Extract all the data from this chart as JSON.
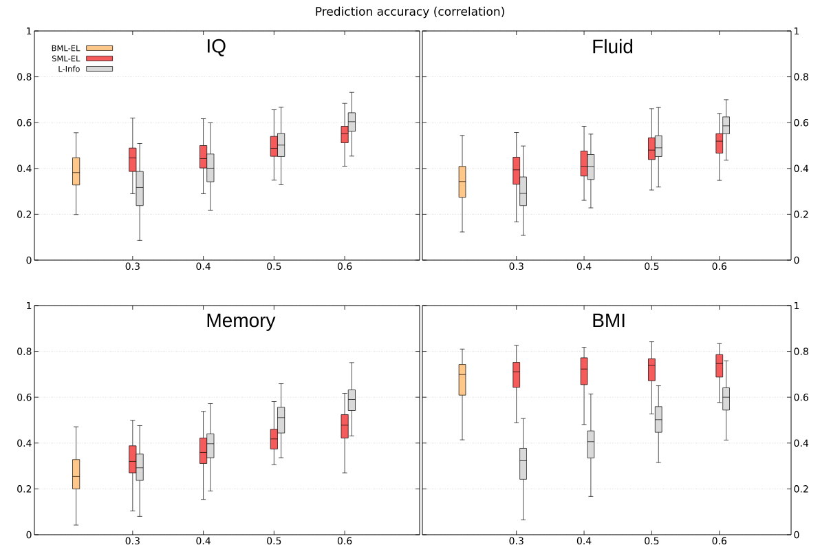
{
  "chart_data": [
    {
      "type": "box",
      "title": "IQ",
      "annotations": [
        "Prediction accuracy (correlation)"
      ],
      "categories": [
        null,
        "0.3",
        "0.4",
        "0.5",
        "0.6"
      ],
      "ylim": [
        0,
        1
      ],
      "yticks": [
        0,
        0.2,
        0.4,
        0.6,
        0.8,
        1
      ],
      "grid": "y",
      "legend": "top left",
      "series": [
        {
          "name": "BML-EL",
          "color": "#ffc88a",
          "boxes": [
            {
              "low": 0.199,
              "q1": 0.328,
              "median": 0.382,
              "q3": 0.447,
              "high": 0.556
            },
            null,
            null,
            null,
            null
          ]
        },
        {
          "name": "SML-EL",
          "color": "#f55b5b",
          "boxes": [
            null,
            {
              "low": 0.29,
              "q1": 0.387,
              "median": 0.446,
              "q3": 0.489,
              "high": 0.62
            },
            {
              "low": 0.29,
              "q1": 0.402,
              "median": 0.443,
              "q3": 0.5,
              "high": 0.617
            },
            {
              "low": 0.349,
              "q1": 0.453,
              "median": 0.488,
              "q3": 0.54,
              "high": 0.656
            },
            {
              "low": 0.41,
              "q1": 0.512,
              "median": 0.552,
              "q3": 0.584,
              "high": 0.684
            }
          ]
        },
        {
          "name": "L-Info",
          "color": "#d9d9d9",
          "boxes": [
            null,
            {
              "low": 0.086,
              "q1": 0.238,
              "median": 0.317,
              "q3": 0.387,
              "high": 0.509
            },
            {
              "low": 0.218,
              "q1": 0.342,
              "median": 0.401,
              "q3": 0.463,
              "high": 0.599
            },
            {
              "low": 0.329,
              "q1": 0.452,
              "median": 0.502,
              "q3": 0.553,
              "high": 0.667
            },
            {
              "low": 0.454,
              "q1": 0.562,
              "median": 0.604,
              "q3": 0.643,
              "high": 0.732
            }
          ]
        }
      ]
    },
    {
      "type": "box",
      "title": "Fluid",
      "categories": [
        null,
        "0.3",
        "0.4",
        "0.5",
        "0.6"
      ],
      "y2lim": [
        0,
        1
      ],
      "y2ticks": [
        0,
        0.2,
        0.4,
        0.6,
        0.8,
        1
      ],
      "grid": "y",
      "series": [
        {
          "color": "#ffc88a",
          "axis": "y2",
          "boxes": [
            {
              "low": 0.123,
              "q1": 0.274,
              "median": 0.343,
              "q3": 0.409,
              "high": 0.544
            },
            null,
            null,
            null,
            null
          ]
        },
        {
          "color": "#f55b5b",
          "axis": "y2",
          "boxes": [
            null,
            {
              "low": 0.167,
              "q1": 0.331,
              "median": 0.394,
              "q3": 0.449,
              "high": 0.557
            },
            {
              "low": 0.261,
              "q1": 0.367,
              "median": 0.409,
              "q3": 0.476,
              "high": 0.584
            },
            {
              "low": 0.306,
              "q1": 0.439,
              "median": 0.48,
              "q3": 0.534,
              "high": 0.661
            },
            {
              "low": 0.348,
              "q1": 0.467,
              "median": 0.519,
              "q3": 0.552,
              "high": 0.64
            }
          ]
        },
        {
          "color": "#d9d9d9",
          "axis": "y2",
          "boxes": [
            null,
            {
              "low": 0.108,
              "q1": 0.238,
              "median": 0.291,
              "q3": 0.363,
              "high": 0.498
            },
            {
              "low": 0.228,
              "q1": 0.352,
              "median": 0.409,
              "q3": 0.461,
              "high": 0.55
            },
            {
              "low": 0.319,
              "q1": 0.452,
              "median": 0.49,
              "q3": 0.543,
              "high": 0.666
            },
            {
              "low": 0.436,
              "q1": 0.551,
              "median": 0.586,
              "q3": 0.625,
              "high": 0.7
            }
          ]
        }
      ]
    },
    {
      "type": "box",
      "title": "Memory",
      "categories": [
        null,
        "0.3",
        "0.4",
        "0.5",
        "0.6"
      ],
      "ylim": [
        0,
        1
      ],
      "yticks": [
        0,
        0.2,
        0.4,
        0.6,
        0.8,
        1
      ],
      "grid": "y",
      "series": [
        {
          "color": "#ffc88a",
          "boxes": [
            {
              "low": 0.042,
              "q1": 0.2,
              "median": 0.254,
              "q3": 0.328,
              "high": 0.471
            },
            null,
            null,
            null,
            null
          ]
        },
        {
          "color": "#f55b5b",
          "boxes": [
            null,
            {
              "low": 0.104,
              "q1": 0.27,
              "median": 0.32,
              "q3": 0.388,
              "high": 0.499
            },
            {
              "low": 0.154,
              "q1": 0.311,
              "median": 0.359,
              "q3": 0.422,
              "high": 0.538
            },
            {
              "low": 0.306,
              "q1": 0.374,
              "median": 0.418,
              "q3": 0.46,
              "high": 0.581
            },
            {
              "low": 0.27,
              "q1": 0.422,
              "median": 0.478,
              "q3": 0.524,
              "high": 0.617
            }
          ]
        },
        {
          "color": "#d9d9d9",
          "boxes": [
            null,
            {
              "low": 0.08,
              "q1": 0.237,
              "median": 0.292,
              "q3": 0.352,
              "high": 0.476
            },
            {
              "low": 0.191,
              "q1": 0.336,
              "median": 0.397,
              "q3": 0.44,
              "high": 0.572
            },
            {
              "low": 0.336,
              "q1": 0.444,
              "median": 0.511,
              "q3": 0.556,
              "high": 0.659
            },
            {
              "low": 0.431,
              "q1": 0.542,
              "median": 0.59,
              "q3": 0.632,
              "high": 0.751
            }
          ]
        }
      ]
    },
    {
      "type": "box",
      "title": "BMI",
      "categories": [
        null,
        "0.3",
        "0.4",
        "0.5",
        "0.6"
      ],
      "y2lim": [
        0,
        1
      ],
      "y2ticks": [
        0,
        0.2,
        0.4,
        0.6,
        0.8,
        1
      ],
      "grid": "y",
      "series": [
        {
          "color": "#ffc88a",
          "axis": "y2",
          "boxes": [
            {
              "low": 0.414,
              "q1": 0.609,
              "median": 0.699,
              "q3": 0.743,
              "high": 0.81
            },
            null,
            null,
            null,
            null
          ]
        },
        {
          "color": "#f55b5b",
          "axis": "y2",
          "boxes": [
            null,
            {
              "low": 0.489,
              "q1": 0.643,
              "median": 0.711,
              "q3": 0.752,
              "high": 0.826
            },
            {
              "low": 0.481,
              "q1": 0.655,
              "median": 0.723,
              "q3": 0.772,
              "high": 0.818
            },
            {
              "low": 0.527,
              "q1": 0.672,
              "median": 0.739,
              "q3": 0.768,
              "high": 0.842
            },
            {
              "low": 0.577,
              "q1": 0.688,
              "median": 0.747,
              "q3": 0.786,
              "high": 0.834
            }
          ]
        },
        {
          "color": "#d9d9d9",
          "axis": "y2",
          "boxes": [
            null,
            {
              "low": 0.065,
              "q1": 0.242,
              "median": 0.323,
              "q3": 0.377,
              "high": 0.507
            },
            {
              "low": 0.167,
              "q1": 0.335,
              "median": 0.406,
              "q3": 0.453,
              "high": 0.614
            },
            {
              "low": 0.315,
              "q1": 0.447,
              "median": 0.502,
              "q3": 0.559,
              "high": 0.65
            },
            {
              "low": 0.413,
              "q1": 0.544,
              "median": 0.6,
              "q3": 0.641,
              "high": 0.759
            }
          ]
        }
      ]
    }
  ]
}
